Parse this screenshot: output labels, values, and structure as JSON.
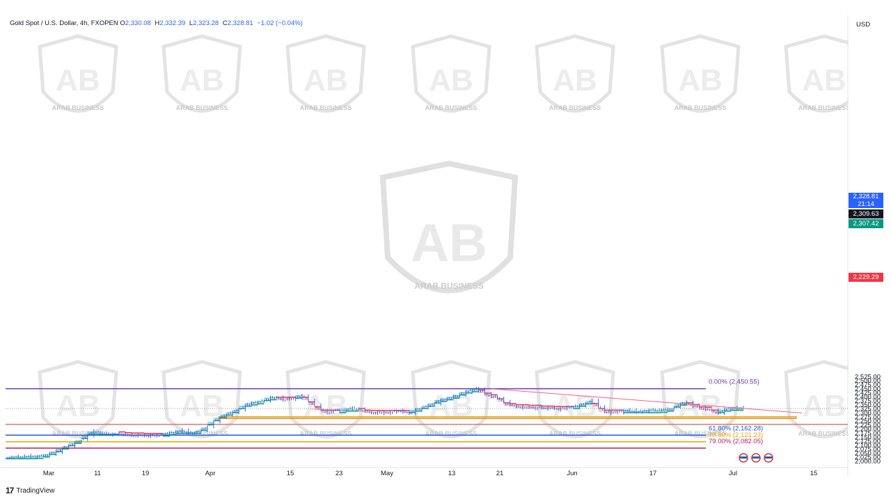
{
  "header": {
    "symbol": "Gold Spot / U.S. Dollar, 4h, FXOPEN",
    "open_label": "O",
    "open": "2,330.08",
    "high_label": "H",
    "high": "2,332.39",
    "low_label": "L",
    "low": "2,323.28",
    "close_label": "C",
    "close": "2,328.81",
    "change": "−1.02 (−0.04%)"
  },
  "currency": "USD",
  "footer": {
    "brand": "TradingView",
    "logo": "17"
  },
  "watermark": {
    "text": "ARAB BUSINESS",
    "brand_mark": "AB"
  },
  "price_labels": [
    {
      "text": "2,328.81",
      "subtext": "21:14",
      "color": "#2962ff"
    },
    {
      "text": "2,309.63",
      "color": "#131722"
    },
    {
      "text": "2,307.42",
      "color": "#089981"
    },
    {
      "text": "2,229.29",
      "color": "#f23645"
    }
  ],
  "colors": {
    "bullish": "#089981",
    "bearish": "#f23645",
    "candle": "#2962ff",
    "support_zone": "#f5b041"
  },
  "chart_data": {
    "type": "line",
    "title": "Gold Spot / U.S. Dollar, 4h, FXOPEN",
    "xlabel": "",
    "ylabel": "",
    "x_ticks": [
      "Mar",
      "11",
      "19",
      "Apr",
      "15",
      "23",
      "May",
      "13",
      "21",
      "Jun",
      "17",
      "Jul",
      "15"
    ],
    "y_ticks": [
      "2,525.00",
      "2,500.00",
      "2,475.00",
      "2,450.00",
      "2,425.00",
      "2,400.00",
      "2,375.00",
      "2,350.00",
      "2,325.00",
      "2,300.00",
      "2,275.00",
      "2,250.00",
      "2,225.00",
      "2,200.00",
      "2,175.00",
      "2,150.00",
      "2,125.00",
      "2,100.00",
      "2,075.00",
      "2,050.00",
      "2,025.00",
      "2,000.00"
    ],
    "ylim": [
      2000,
      2525
    ],
    "series": [
      {
        "values": [
          2024,
          2027,
          2030,
          2029,
          2033,
          2031,
          2036,
          2045,
          2060,
          2078,
          2095,
          2115,
          2130,
          2160,
          2185,
          2178,
          2170,
          2168,
          2172,
          2165,
          2160,
          2158,
          2162,
          2155,
          2160,
          2168,
          2175,
          2183,
          2192,
          2178,
          2180,
          2190,
          2210,
          2245,
          2270,
          2290,
          2305,
          2320,
          2345,
          2360,
          2368,
          2375,
          2395,
          2400,
          2380,
          2385,
          2392,
          2410,
          2380,
          2350,
          2320,
          2300,
          2310,
          2318,
          2320,
          2330,
          2325,
          2310,
          2300,
          2298,
          2305,
          2300,
          2315,
          2310,
          2300,
          2320,
          2330,
          2345,
          2360,
          2380,
          2390,
          2400,
          2410,
          2430,
          2442,
          2450,
          2425,
          2405,
          2395,
          2370,
          2345,
          2340,
          2333,
          2336,
          2330,
          2335,
          2325,
          2330,
          2322,
          2335,
          2340,
          2345,
          2360,
          2375,
          2340,
          2310,
          2300,
          2305,
          2315,
          2320,
          2310,
          2312,
          2318,
          2320,
          2316,
          2322,
          2330,
          2355,
          2367,
          2345,
          2335,
          2320,
          2318,
          2300,
          2320,
          2330,
          2335,
          2328
        ]
      }
    ],
    "levels": [
      {
        "label": "0.00% (2,450.55)",
        "value": 2450.55,
        "color": "#673ab7"
      },
      {
        "label": "61.80% (2,162.28)",
        "value": 2162.28,
        "color": "#1e53e5"
      },
      {
        "label": "70.60% (2,121.23)",
        "value": 2121.23,
        "color": "#e6a700"
      },
      {
        "label": "79.00% (2,082.05)",
        "value": 2082.05,
        "color": "#c2185b"
      },
      {
        "label": "",
        "value": 2229.29,
        "color": "#e57373"
      }
    ],
    "support_zone": [
      2265,
      2277
    ],
    "trendline": {
      "from": 2450,
      "to": 2315
    },
    "grid": false
  }
}
